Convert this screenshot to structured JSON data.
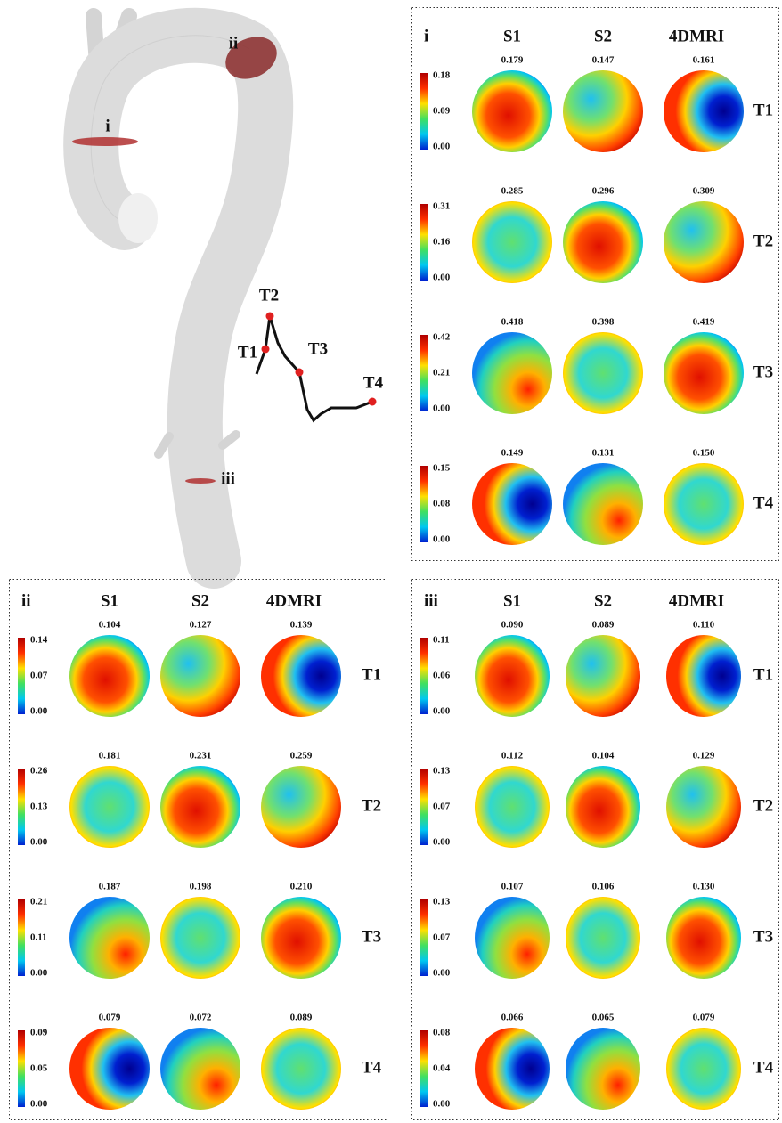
{
  "aorta": {
    "labels": [
      "i",
      "ii",
      "iii"
    ],
    "waveform_labels": [
      "T1",
      "T2",
      "T3",
      "T4"
    ]
  },
  "panels": [
    {
      "label": "i",
      "columns": [
        "S1",
        "S2",
        "4DMRI"
      ],
      "rows": [
        {
          "time": "T1",
          "colorbar": [
            "0.18",
            "0.09",
            "0.00"
          ],
          "values": [
            "0.179",
            "0.147",
            "0.161"
          ]
        },
        {
          "time": "T2",
          "colorbar": [
            "0.31",
            "0.16",
            "0.00"
          ],
          "values": [
            "0.285",
            "0.296",
            "0.309"
          ]
        },
        {
          "time": "T3",
          "colorbar": [
            "0.42",
            "0.21",
            "0.00"
          ],
          "values": [
            "0.418",
            "0.398",
            "0.419"
          ]
        },
        {
          "time": "T4",
          "colorbar": [
            "0.15",
            "0.08",
            "0.00"
          ],
          "values": [
            "0.149",
            "0.131",
            "0.150"
          ]
        }
      ]
    },
    {
      "label": "ii",
      "columns": [
        "S1",
        "S2",
        "4DMRI"
      ],
      "rows": [
        {
          "time": "T1",
          "colorbar": [
            "0.14",
            "0.07",
            "0.00"
          ],
          "values": [
            "0.104",
            "0.127",
            "0.139"
          ]
        },
        {
          "time": "T2",
          "colorbar": [
            "0.26",
            "0.13",
            "0.00"
          ],
          "values": [
            "0.181",
            "0.231",
            "0.259"
          ]
        },
        {
          "time": "T3",
          "colorbar": [
            "0.21",
            "0.11",
            "0.00"
          ],
          "values": [
            "0.187",
            "0.198",
            "0.210"
          ]
        },
        {
          "time": "T4",
          "colorbar": [
            "0.09",
            "0.05",
            "0.00"
          ],
          "values": [
            "0.079",
            "0.072",
            "0.089"
          ]
        }
      ]
    },
    {
      "label": "iii",
      "columns": [
        "S1",
        "S2",
        "4DMRI"
      ],
      "rows": [
        {
          "time": "T1",
          "colorbar": [
            "0.11",
            "0.06",
            "0.00"
          ],
          "values": [
            "0.090",
            "0.089",
            "0.110"
          ]
        },
        {
          "time": "T2",
          "colorbar": [
            "0.13",
            "0.07",
            "0.00"
          ],
          "values": [
            "0.112",
            "0.104",
            "0.129"
          ]
        },
        {
          "time": "T3",
          "colorbar": [
            "0.13",
            "0.07",
            "0.00"
          ],
          "values": [
            "0.107",
            "0.106",
            "0.130"
          ]
        },
        {
          "time": "T4",
          "colorbar": [
            "0.08",
            "0.04",
            "0.00"
          ],
          "values": [
            "0.066",
            "0.065",
            "0.079"
          ]
        }
      ]
    }
  ]
}
